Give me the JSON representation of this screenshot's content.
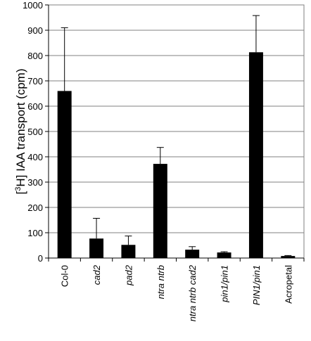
{
  "chart_data": {
    "type": "bar",
    "title": "",
    "ylabel_parts": [
      "[",
      "3",
      "H] IAA transport (cpm)"
    ],
    "xlabel": "",
    "ylim": [
      0,
      1000
    ],
    "yticks": [
      "0",
      "100",
      "200",
      "300",
      "400",
      "500",
      "600",
      "700",
      "800",
      "900",
      "1000"
    ],
    "grid": true,
    "categories": [
      "Col-0",
      "cad2",
      "pad2",
      "ntra ntrb",
      "ntra ntrb cad2",
      "pin1/pin1",
      "PIN1/pin1",
      "Acropetal"
    ],
    "italic_categories": [
      false,
      true,
      true,
      true,
      true,
      true,
      true,
      false
    ],
    "values": [
      660,
      77,
      52,
      372,
      33,
      22,
      813,
      8
    ],
    "errors": [
      250,
      80,
      35,
      65,
      12,
      3,
      145,
      2
    ],
    "bar_color": "#000000"
  }
}
